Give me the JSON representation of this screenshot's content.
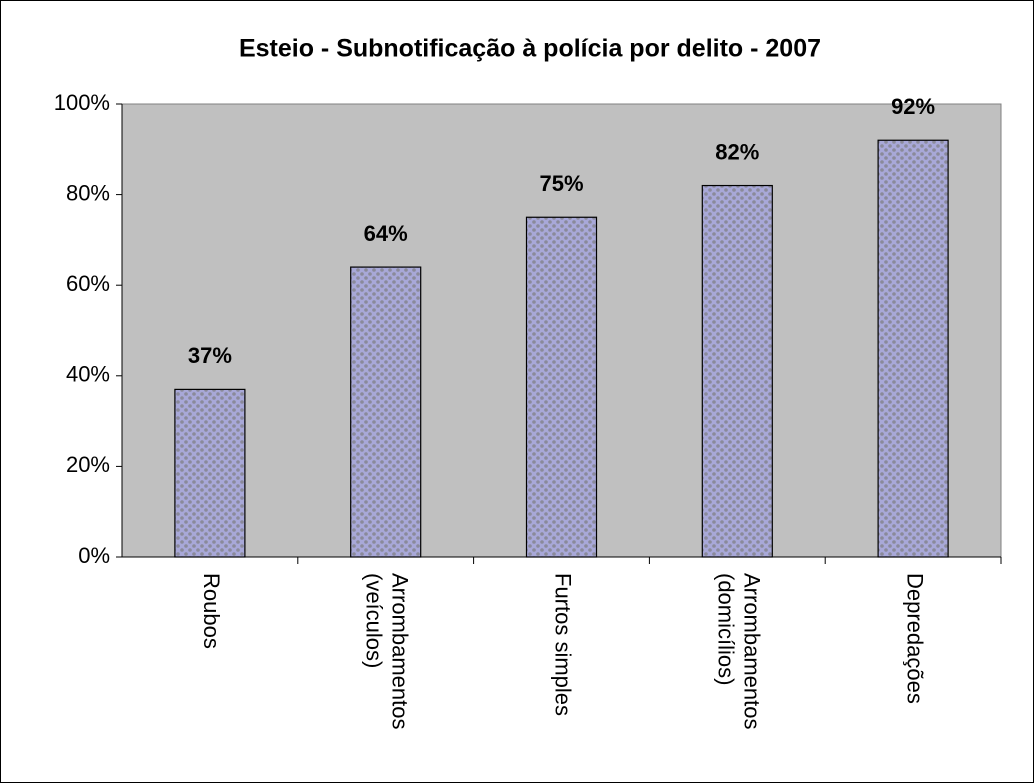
{
  "chart_data": {
    "type": "bar",
    "title": "Esteio - Subnotificação à polícia por delito - 2007",
    "categories": [
      "Roubos",
      "Arrombamentos (veículos)",
      "Furtos simples",
      "Arrombamentos (domicílios)",
      "Depredações"
    ],
    "values": [
      37,
      64,
      75,
      82,
      92
    ],
    "value_labels": [
      "37%",
      "64%",
      "75%",
      "82%",
      "92%"
    ],
    "color": "#a8a8d8",
    "ylim": [
      0,
      100
    ],
    "yticks": [
      {
        "value": 0,
        "label": "0%"
      },
      {
        "value": 20,
        "label": "20%"
      },
      {
        "value": 40,
        "label": "40%"
      },
      {
        "value": 60,
        "label": "60%"
      },
      {
        "value": 80,
        "label": "80%"
      },
      {
        "value": 100,
        "label": "100%"
      }
    ],
    "grid": false
  }
}
